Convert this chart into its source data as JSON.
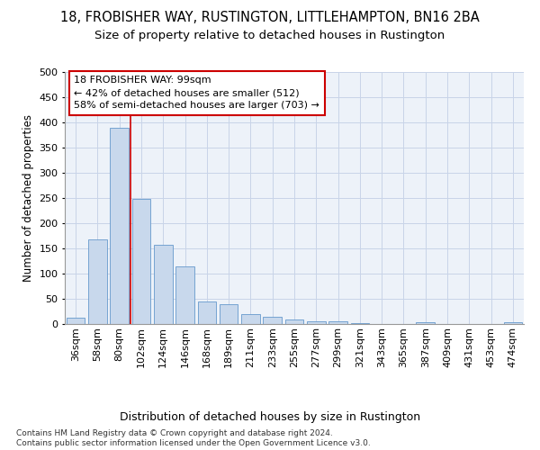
{
  "title1": "18, FROBISHER WAY, RUSTINGTON, LITTLEHAMPTON, BN16 2BA",
  "title2": "Size of property relative to detached houses in Rustington",
  "xlabel": "Distribution of detached houses by size in Rustington",
  "ylabel": "Number of detached properties",
  "categories": [
    "36sqm",
    "58sqm",
    "80sqm",
    "102sqm",
    "124sqm",
    "146sqm",
    "168sqm",
    "189sqm",
    "211sqm",
    "233sqm",
    "255sqm",
    "277sqm",
    "299sqm",
    "321sqm",
    "343sqm",
    "365sqm",
    "387sqm",
    "409sqm",
    "431sqm",
    "453sqm",
    "474sqm"
  ],
  "values": [
    13,
    167,
    390,
    249,
    157,
    115,
    44,
    40,
    19,
    15,
    9,
    6,
    5,
    2,
    0,
    0,
    3,
    0,
    0,
    0,
    4
  ],
  "bar_color": "#c8d8ec",
  "bar_edge_color": "#6699cc",
  "vline_x_index": 3,
  "vline_color": "#cc0000",
  "annotation_text": "18 FROBISHER WAY: 99sqm\n← 42% of detached houses are smaller (512)\n58% of semi-detached houses are larger (703) →",
  "annotation_box_color": "#ffffff",
  "annotation_box_edge": "#cc0000",
  "ylim": [
    0,
    500
  ],
  "yticks": [
    0,
    50,
    100,
    150,
    200,
    250,
    300,
    350,
    400,
    450,
    500
  ],
  "grid_color": "#c8d4e8",
  "footnote": "Contains HM Land Registry data © Crown copyright and database right 2024.\nContains public sector information licensed under the Open Government Licence v3.0.",
  "bg_color": "#edf2f9",
  "title1_fontsize": 10.5,
  "title2_fontsize": 9.5,
  "xlabel_fontsize": 9,
  "ylabel_fontsize": 8.5,
  "tick_fontsize": 8,
  "footnote_fontsize": 6.5
}
